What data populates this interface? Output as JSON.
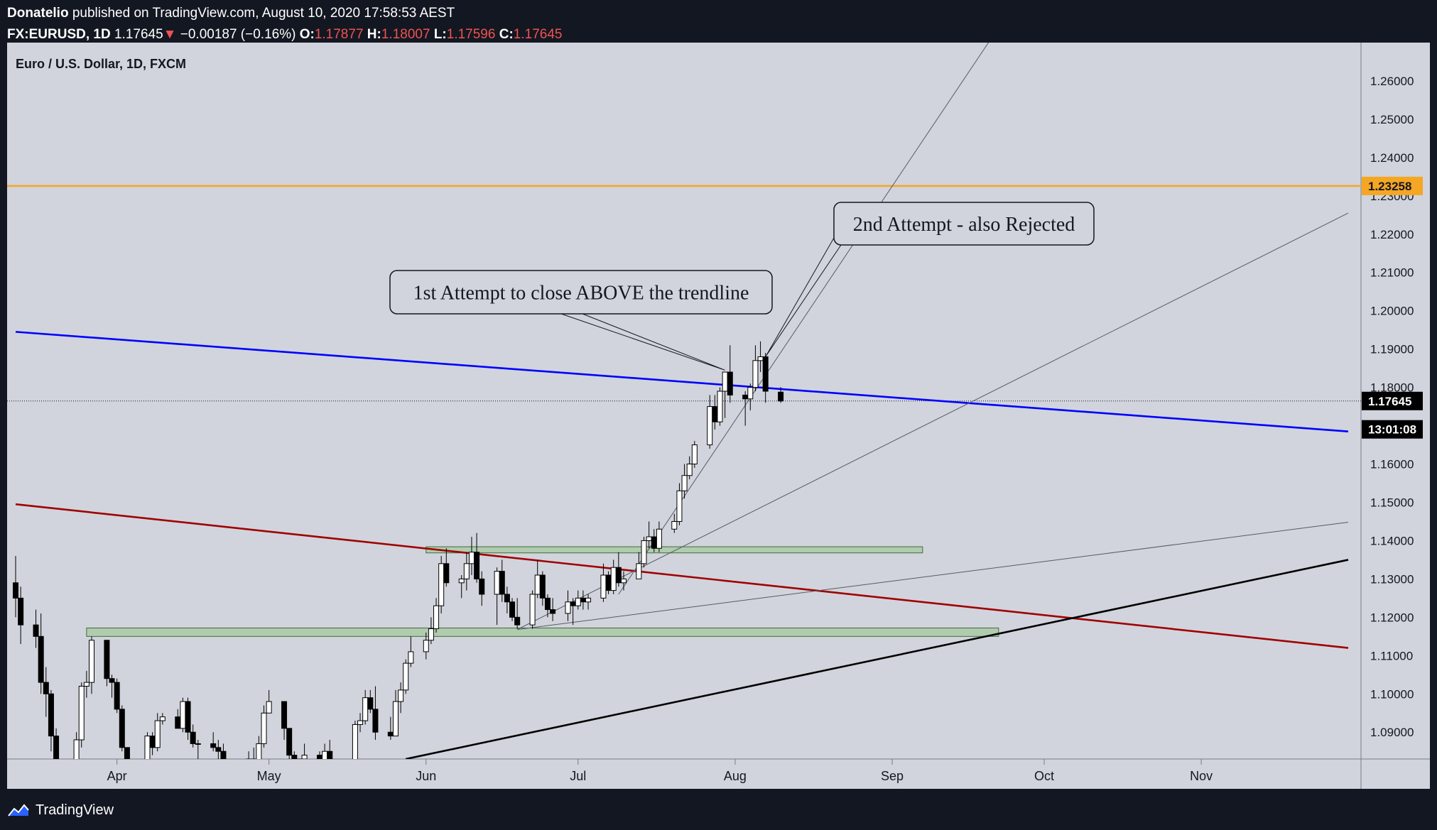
{
  "header": {
    "publisher": "Donatelio",
    "published_line": "published on TradingView.com, August 10, 2020 17:58:53 AEST",
    "symbol": "FX:EURUSD, 1D",
    "last": "1.17645",
    "change_arrow": "▼",
    "change": "−0.00187 (−0.16%)",
    "o_label": "O:",
    "o_value": "1.17877",
    "h_label": "H:",
    "h_value": "1.18007",
    "l_label": "L:",
    "l_value": "1.17596",
    "c_label": "C:",
    "c_value": "1.17645"
  },
  "footer": {
    "brand": "TradingView",
    "logo_icon": "tradingview-logo-icon"
  },
  "colors": {
    "background": "#d1d4dc",
    "frame": "#131722",
    "up_candle": "#ffffff",
    "down_candle": "#000000",
    "orange_level": "#f5a623",
    "blue_trendline": "#0000ff",
    "red_trendline": "#a00000",
    "black_trendline": "#000000",
    "zone_fill": "#a5c8a0"
  },
  "chart_data": {
    "type": "candlestick",
    "title": "Euro / U.S. Dollar, 1D, FXCM",
    "y_range": [
      1.083,
      1.27
    ],
    "y_ticks": [
      "1.26000",
      "1.25000",
      "1.24000",
      "1.23000",
      "1.22000",
      "1.21000",
      "1.20000",
      "1.19000",
      "1.18000",
      "1.17000",
      "1.16000",
      "1.15000",
      "1.14000",
      "1.13000",
      "1.12000",
      "1.11000",
      "1.10000",
      "1.09000"
    ],
    "x_range": [
      "2020-03-12",
      "2020-11-30"
    ],
    "x_ticks": [
      {
        "label": "Apr",
        "date": "2020-04-01"
      },
      {
        "label": "May",
        "date": "2020-05-01"
      },
      {
        "label": "Jun",
        "date": "2020-06-01"
      },
      {
        "label": "Jul",
        "date": "2020-07-01"
      },
      {
        "label": "Aug",
        "date": "2020-08-01"
      },
      {
        "label": "Sep",
        "date": "2020-09-01"
      },
      {
        "label": "Oct",
        "date": "2020-10-01"
      },
      {
        "label": "Nov",
        "date": "2020-11-01"
      }
    ],
    "price_labels": [
      {
        "label": "1.23258",
        "value": 1.23258,
        "style": "orange"
      },
      {
        "label": "1.17645",
        "value": 1.17645,
        "style": "last"
      },
      {
        "label": "13:01:08",
        "value": 1.16905,
        "style": "countdown"
      }
    ],
    "last_price": 1.17645,
    "candles": [
      {
        "t": "2020-03-12",
        "o": 1.129,
        "h": 1.136,
        "l": 1.12,
        "c": 1.125
      },
      {
        "t": "2020-03-13",
        "o": 1.125,
        "h": 1.128,
        "l": 1.113,
        "c": 1.118
      },
      {
        "t": "2020-03-16",
        "o": 1.118,
        "h": 1.122,
        "l": 1.112,
        "c": 1.115
      },
      {
        "t": "2020-03-17",
        "o": 1.115,
        "h": 1.121,
        "l": 1.1,
        "c": 1.103
      },
      {
        "t": "2020-03-18",
        "o": 1.103,
        "h": 1.107,
        "l": 1.094,
        "c": 1.1
      },
      {
        "t": "2020-03-19",
        "o": 1.1,
        "h": 1.101,
        "l": 1.085,
        "c": 1.089
      },
      {
        "t": "2020-03-20",
        "o": 1.089,
        "h": 1.091,
        "l": 1.07,
        "c": 1.07
      },
      {
        "t": "2020-03-23",
        "o": 1.07,
        "h": 1.08,
        "l": 1.064,
        "c": 1.072
      },
      {
        "t": "2020-03-24",
        "o": 1.078,
        "h": 1.09,
        "l": 1.075,
        "c": 1.088
      },
      {
        "t": "2020-03-25",
        "o": 1.088,
        "h": 1.103,
        "l": 1.086,
        "c": 1.102
      },
      {
        "t": "2020-03-26",
        "o": 1.102,
        "h": 1.106,
        "l": 1.099,
        "c": 1.103
      },
      {
        "t": "2020-03-27",
        "o": 1.103,
        "h": 1.115,
        "l": 1.1,
        "c": 1.114
      },
      {
        "t": "2020-03-30",
        "o": 1.114,
        "h": 1.114,
        "l": 1.102,
        "c": 1.104
      },
      {
        "t": "2020-03-31",
        "o": 1.104,
        "h": 1.105,
        "l": 1.099,
        "c": 1.103
      },
      {
        "t": "2020-04-01",
        "o": 1.103,
        "h": 1.104,
        "l": 1.095,
        "c": 1.096
      },
      {
        "t": "2020-04-02",
        "o": 1.096,
        "h": 1.097,
        "l": 1.085,
        "c": 1.086
      },
      {
        "t": "2020-04-03",
        "o": 1.086,
        "h": 1.086,
        "l": 1.078,
        "c": 1.08
      },
      {
        "t": "2020-04-06",
        "o": 1.08,
        "h": 1.082,
        "l": 1.076,
        "c": 1.079
      },
      {
        "t": "2020-04-07",
        "o": 1.079,
        "h": 1.09,
        "l": 1.079,
        "c": 1.089
      },
      {
        "t": "2020-04-08",
        "o": 1.089,
        "h": 1.09,
        "l": 1.084,
        "c": 1.086
      },
      {
        "t": "2020-04-09",
        "o": 1.086,
        "h": 1.095,
        "l": 1.085,
        "c": 1.093
      },
      {
        "t": "2020-04-10",
        "o": 1.093,
        "h": 1.095,
        "l": 1.092,
        "c": 1.094
      },
      {
        "t": "2020-04-13",
        "o": 1.094,
        "h": 1.096,
        "l": 1.091,
        "c": 1.091
      },
      {
        "t": "2020-04-14",
        "o": 1.091,
        "h": 1.099,
        "l": 1.09,
        "c": 1.098
      },
      {
        "t": "2020-04-15",
        "o": 1.098,
        "h": 1.099,
        "l": 1.088,
        "c": 1.09
      },
      {
        "t": "2020-04-16",
        "o": 1.09,
        "h": 1.092,
        "l": 1.086,
        "c": 1.087
      },
      {
        "t": "2020-04-17",
        "o": 1.087,
        "h": 1.088,
        "l": 1.081,
        "c": 1.087
      },
      {
        "t": "2020-04-20",
        "o": 1.087,
        "h": 1.09,
        "l": 1.085,
        "c": 1.086
      },
      {
        "t": "2020-04-21",
        "o": 1.086,
        "h": 1.088,
        "l": 1.083,
        "c": 1.085
      },
      {
        "t": "2020-04-22",
        "o": 1.085,
        "h": 1.087,
        "l": 1.083,
        "c": 1.082
      },
      {
        "t": "2020-04-23",
        "o": 1.082,
        "h": 1.083,
        "l": 1.078,
        "c": 1.078
      },
      {
        "t": "2020-04-24",
        "o": 1.078,
        "h": 1.083,
        "l": 1.076,
        "c": 1.082
      },
      {
        "t": "2020-04-27",
        "o": 1.082,
        "h": 1.085,
        "l": 1.081,
        "c": 1.083
      },
      {
        "t": "2020-04-28",
        "o": 1.083,
        "h": 1.086,
        "l": 1.081,
        "c": 1.082
      },
      {
        "t": "2020-04-29",
        "o": 1.082,
        "h": 1.089,
        "l": 1.081,
        "c": 1.087
      },
      {
        "t": "2020-04-30",
        "o": 1.087,
        "h": 1.097,
        "l": 1.086,
        "c": 1.095
      },
      {
        "t": "2020-05-01",
        "o": 1.095,
        "h": 1.101,
        "l": 1.095,
        "c": 1.098
      },
      {
        "t": "2020-05-04",
        "o": 1.098,
        "h": 1.098,
        "l": 1.088,
        "c": 1.091
      },
      {
        "t": "2020-05-05",
        "o": 1.091,
        "h": 1.091,
        "l": 1.083,
        "c": 1.084
      },
      {
        "t": "2020-05-06",
        "o": 1.084,
        "h": 1.085,
        "l": 1.078,
        "c": 1.08
      },
      {
        "t": "2020-05-07",
        "o": 1.08,
        "h": 1.083,
        "l": 1.077,
        "c": 1.083
      },
      {
        "t": "2020-05-08",
        "o": 1.083,
        "h": 1.087,
        "l": 1.081,
        "c": 1.084
      },
      {
        "t": "2020-05-11",
        "o": 1.084,
        "h": 1.085,
        "l": 1.08,
        "c": 1.081
      },
      {
        "t": "2020-05-12",
        "o": 1.081,
        "h": 1.087,
        "l": 1.08,
        "c": 1.085
      },
      {
        "t": "2020-05-13",
        "o": 1.085,
        "h": 1.088,
        "l": 1.081,
        "c": 1.082
      },
      {
        "t": "2020-05-14",
        "o": 1.082,
        "h": 1.083,
        "l": 1.078,
        "c": 1.08
      },
      {
        "t": "2020-05-15",
        "o": 1.08,
        "h": 1.083,
        "l": 1.078,
        "c": 1.082
      },
      {
        "t": "2020-05-18",
        "o": 1.082,
        "h": 1.093,
        "l": 1.081,
        "c": 1.092
      },
      {
        "t": "2020-05-19",
        "o": 1.092,
        "h": 1.095,
        "l": 1.09,
        "c": 1.093
      },
      {
        "t": "2020-05-20",
        "o": 1.093,
        "h": 1.101,
        "l": 1.092,
        "c": 1.099
      },
      {
        "t": "2020-05-21",
        "o": 1.099,
        "h": 1.101,
        "l": 1.095,
        "c": 1.096
      },
      {
        "t": "2020-05-22",
        "o": 1.096,
        "h": 1.102,
        "l": 1.088,
        "c": 1.09
      },
      {
        "t": "2020-05-25",
        "o": 1.09,
        "h": 1.094,
        "l": 1.088,
        "c": 1.089
      },
      {
        "t": "2020-05-26",
        "o": 1.089,
        "h": 1.101,
        "l": 1.089,
        "c": 1.098
      },
      {
        "t": "2020-05-27",
        "o": 1.098,
        "h": 1.103,
        "l": 1.095,
        "c": 1.101
      },
      {
        "t": "2020-05-28",
        "o": 1.101,
        "h": 1.109,
        "l": 1.1,
        "c": 1.108
      },
      {
        "t": "2020-05-29",
        "o": 1.108,
        "h": 1.115,
        "l": 1.107,
        "c": 1.111
      },
      {
        "t": "2020-06-01",
        "o": 1.111,
        "h": 1.116,
        "l": 1.109,
        "c": 1.114
      },
      {
        "t": "2020-06-02",
        "o": 1.114,
        "h": 1.12,
        "l": 1.113,
        "c": 1.117
      },
      {
        "t": "2020-06-03",
        "o": 1.117,
        "h": 1.125,
        "l": 1.116,
        "c": 1.123
      },
      {
        "t": "2020-06-04",
        "o": 1.123,
        "h": 1.136,
        "l": 1.121,
        "c": 1.134
      },
      {
        "t": "2020-06-05",
        "o": 1.134,
        "h": 1.138,
        "l": 1.128,
        "c": 1.129
      },
      {
        "t": "2020-06-08",
        "o": 1.129,
        "h": 1.131,
        "l": 1.125,
        "c": 1.13
      },
      {
        "t": "2020-06-09",
        "o": 1.13,
        "h": 1.137,
        "l": 1.127,
        "c": 1.134
      },
      {
        "t": "2020-06-10",
        "o": 1.134,
        "h": 1.141,
        "l": 1.131,
        "c": 1.137
      },
      {
        "t": "2020-06-11",
        "o": 1.137,
        "h": 1.142,
        "l": 1.129,
        "c": 1.13
      },
      {
        "t": "2020-06-12",
        "o": 1.13,
        "h": 1.132,
        "l": 1.123,
        "c": 1.126
      },
      {
        "t": "2020-06-15",
        "o": 1.126,
        "h": 1.133,
        "l": 1.118,
        "c": 1.132
      },
      {
        "t": "2020-06-16",
        "o": 1.132,
        "h": 1.135,
        "l": 1.124,
        "c": 1.126
      },
      {
        "t": "2020-06-17",
        "o": 1.126,
        "h": 1.128,
        "l": 1.121,
        "c": 1.124
      },
      {
        "t": "2020-06-18",
        "o": 1.124,
        "h": 1.125,
        "l": 1.119,
        "c": 1.12
      },
      {
        "t": "2020-06-19",
        "o": 1.12,
        "h": 1.125,
        "l": 1.117,
        "c": 1.118
      },
      {
        "t": "2020-06-22",
        "o": 1.118,
        "h": 1.127,
        "l": 1.117,
        "c": 1.126
      },
      {
        "t": "2020-06-23",
        "o": 1.126,
        "h": 1.135,
        "l": 1.125,
        "c": 1.131
      },
      {
        "t": "2020-06-24",
        "o": 1.131,
        "h": 1.132,
        "l": 1.123,
        "c": 1.125
      },
      {
        "t": "2020-06-25",
        "o": 1.125,
        "h": 1.126,
        "l": 1.12,
        "c": 1.122
      },
      {
        "t": "2020-06-26",
        "o": 1.122,
        "h": 1.125,
        "l": 1.119,
        "c": 1.121
      },
      {
        "t": "2020-06-29",
        "o": 1.121,
        "h": 1.127,
        "l": 1.119,
        "c": 1.124
      },
      {
        "t": "2020-06-30",
        "o": 1.124,
        "h": 1.125,
        "l": 1.118,
        "c": 1.123
      },
      {
        "t": "2020-07-01",
        "o": 1.123,
        "h": 1.127,
        "l": 1.122,
        "c": 1.125
      },
      {
        "t": "2020-07-02",
        "o": 1.125,
        "h": 1.127,
        "l": 1.122,
        "c": 1.124
      },
      {
        "t": "2020-07-03",
        "o": 1.124,
        "h": 1.126,
        "l": 1.122,
        "c": 1.125
      },
      {
        "t": "2020-07-06",
        "o": 1.125,
        "h": 1.134,
        "l": 1.124,
        "c": 1.131
      },
      {
        "t": "2020-07-07",
        "o": 1.131,
        "h": 1.132,
        "l": 1.126,
        "c": 1.127
      },
      {
        "t": "2020-07-08",
        "o": 1.127,
        "h": 1.135,
        "l": 1.126,
        "c": 1.133
      },
      {
        "t": "2020-07-09",
        "o": 1.133,
        "h": 1.137,
        "l": 1.128,
        "c": 1.129
      },
      {
        "t": "2020-07-10",
        "o": 1.129,
        "h": 1.132,
        "l": 1.127,
        "c": 1.13
      },
      {
        "t": "2020-07-13",
        "o": 1.13,
        "h": 1.137,
        "l": 1.13,
        "c": 1.134
      },
      {
        "t": "2020-07-14",
        "o": 1.134,
        "h": 1.141,
        "l": 1.133,
        "c": 1.14
      },
      {
        "t": "2020-07-15",
        "o": 1.14,
        "h": 1.145,
        "l": 1.138,
        "c": 1.141
      },
      {
        "t": "2020-07-16",
        "o": 1.141,
        "h": 1.143,
        "l": 1.137,
        "c": 1.138
      },
      {
        "t": "2020-07-17",
        "o": 1.138,
        "h": 1.145,
        "l": 1.137,
        "c": 1.143
      },
      {
        "t": "2020-07-20",
        "o": 1.143,
        "h": 1.147,
        "l": 1.142,
        "c": 1.145
      },
      {
        "t": "2020-07-21",
        "o": 1.145,
        "h": 1.155,
        "l": 1.144,
        "c": 1.153
      },
      {
        "t": "2020-07-22",
        "o": 1.153,
        "h": 1.16,
        "l": 1.151,
        "c": 1.157
      },
      {
        "t": "2020-07-23",
        "o": 1.157,
        "h": 1.162,
        "l": 1.156,
        "c": 1.16
      },
      {
        "t": "2020-07-24",
        "o": 1.16,
        "h": 1.166,
        "l": 1.159,
        "c": 1.165
      },
      {
        "t": "2020-07-27",
        "o": 1.165,
        "h": 1.178,
        "l": 1.164,
        "c": 1.175
      },
      {
        "t": "2020-07-28",
        "o": 1.175,
        "h": 1.178,
        "l": 1.169,
        "c": 1.171
      },
      {
        "t": "2020-07-29",
        "o": 1.171,
        "h": 1.18,
        "l": 1.17,
        "c": 1.179
      },
      {
        "t": "2020-07-30",
        "o": 1.179,
        "h": 1.183,
        "l": 1.172,
        "c": 1.184
      },
      {
        "t": "2020-07-31",
        "o": 1.184,
        "h": 1.191,
        "l": 1.176,
        "c": 1.178
      },
      {
        "t": "2020-08-03",
        "o": 1.178,
        "h": 1.179,
        "l": 1.17,
        "c": 1.177
      },
      {
        "t": "2020-08-04",
        "o": 1.177,
        "h": 1.181,
        "l": 1.174,
        "c": 1.18
      },
      {
        "t": "2020-08-05",
        "o": 1.18,
        "h": 1.191,
        "l": 1.179,
        "c": 1.187
      },
      {
        "t": "2020-08-06",
        "o": 1.187,
        "h": 1.192,
        "l": 1.184,
        "c": 1.188
      },
      {
        "t": "2020-08-07",
        "o": 1.188,
        "h": 1.189,
        "l": 1.176,
        "c": 1.179
      },
      {
        "t": "2020-08-10",
        "o": 1.17877,
        "h": 1.18007,
        "l": 1.17596,
        "c": 1.17645
      }
    ],
    "horizontal_levels": [
      {
        "value": 1.23258,
        "color": "orange"
      }
    ],
    "trendlines": [
      {
        "name": "blue-trendline",
        "color": "blue",
        "from": {
          "t": "2020-03-12",
          "p": 1.1945
        },
        "to": {
          "t": "2020-11-30",
          "p": 1.1685
        }
      },
      {
        "name": "red-trendline",
        "color": "red",
        "from": {
          "t": "2020-03-12",
          "p": 1.1495
        },
        "to": {
          "t": "2020-11-30",
          "p": 1.112
        }
      },
      {
        "name": "black-trendline",
        "color": "black",
        "from": {
          "t": "2020-05-28",
          "p": 1.083
        },
        "to": {
          "t": "2020-11-30",
          "p": 1.135
        }
      },
      {
        "name": "thin-trendline-steep",
        "color": "gray",
        "from": {
          "t": "2020-07-09",
          "p": 1.126
        },
        "to": {
          "t": "2020-09-20",
          "p": 1.27
        }
      },
      {
        "name": "thin-trendline-medium",
        "color": "gray",
        "from": {
          "t": "2020-06-19",
          "p": 1.1168
        },
        "to": {
          "t": "2020-11-30",
          "p": 1.2255
        }
      },
      {
        "name": "thin-trendline-shallow",
        "color": "gray",
        "from": {
          "t": "2020-06-19",
          "p": 1.1168
        },
        "to": {
          "t": "2020-11-30",
          "p": 1.1448
        }
      }
    ],
    "zones": [
      {
        "name": "support-zone-upper",
        "from": "2020-06-01",
        "to": "2020-09-07",
        "top": 1.1384,
        "bottom": 1.1368
      },
      {
        "name": "support-zone-lower",
        "from": "2020-03-26",
        "to": "2020-09-22",
        "top": 1.1172,
        "bottom": 1.115
      }
    ],
    "annotations": [
      {
        "name": "annotation-first-attempt",
        "text": "1st Attempt to close ABOVE the trendline",
        "target": {
          "t": "2020-07-30",
          "p": 1.1845
        }
      },
      {
        "name": "annotation-second-attempt",
        "text": "2nd Attempt - also Rejected",
        "target": {
          "t": "2020-08-07",
          "p": 1.188
        }
      }
    ]
  }
}
